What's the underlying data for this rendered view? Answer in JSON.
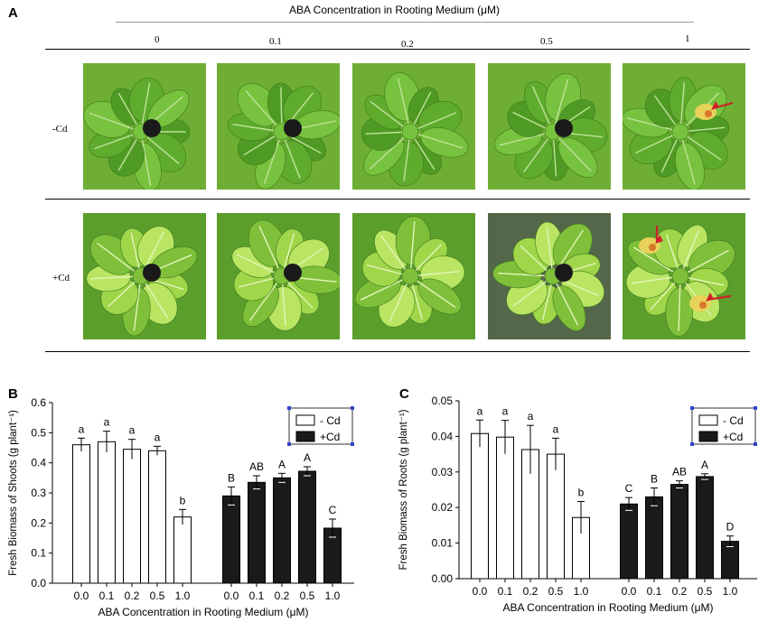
{
  "panel_a": {
    "letter": "A",
    "header": "ABA Concentration in Rooting Medium (μM)",
    "concentrations": [
      "0",
      "0.1",
      "0.2",
      "0.5",
      "1"
    ],
    "row_labels": [
      "-Cd",
      "+Cd"
    ]
  },
  "chart_data": [
    {
      "panel": "B",
      "type": "bar",
      "title": "",
      "xlabel": "ABA Concentration in Rooting Medium (μM)",
      "ylabel": "Fresh Biomass of Shoots (g plant⁻¹)",
      "ylim": [
        0.0,
        0.6
      ],
      "yticks": [
        "0.0",
        "0.1",
        "0.2",
        "0.3",
        "0.4",
        "0.5",
        "0.6"
      ],
      "categories": [
        "0.0",
        "0.1",
        "0.2",
        "0.5",
        "1.0"
      ],
      "legend_position": "top-right",
      "series": [
        {
          "name": "- Cd",
          "color": "#ffffff",
          "values": [
            0.46,
            0.47,
            0.445,
            0.44,
            0.22
          ],
          "errors": [
            0.022,
            0.035,
            0.033,
            0.015,
            0.025
          ],
          "letters": [
            "a",
            "a",
            "a",
            "a",
            "b"
          ]
        },
        {
          "name": "+Cd",
          "color": "#1a1a1a",
          "values": [
            0.29,
            0.335,
            0.35,
            0.372,
            0.183
          ],
          "errors": [
            0.03,
            0.022,
            0.015,
            0.015,
            0.03
          ],
          "letters": [
            "B",
            "AB",
            "A",
            "A",
            "C"
          ]
        }
      ]
    },
    {
      "panel": "C",
      "type": "bar",
      "title": "",
      "xlabel": "ABA Concentration in Rooting Medium (μM)",
      "ylabel": "Fresh Biomass of Roots (g plant⁻¹)",
      "ylim": [
        0.0,
        0.05
      ],
      "yticks": [
        "0.00",
        "0.01",
        "0.02",
        "0.03",
        "0.04",
        "0.05"
      ],
      "categories": [
        "0.0",
        "0.1",
        "0.2",
        "0.5",
        "1.0"
      ],
      "legend_position": "top-right",
      "series": [
        {
          "name": "- Cd",
          "color": "#ffffff",
          "values": [
            0.0408,
            0.0398,
            0.0363,
            0.035,
            0.0172
          ],
          "errors": [
            0.0038,
            0.0047,
            0.0068,
            0.0045,
            0.0045
          ],
          "letters": [
            "a",
            "a",
            "a",
            "a",
            "b"
          ]
        },
        {
          "name": "+Cd",
          "color": "#1a1a1a",
          "values": [
            0.021,
            0.023,
            0.0265,
            0.0287,
            0.0105
          ],
          "errors": [
            0.0018,
            0.0025,
            0.001,
            0.0008,
            0.0015
          ],
          "letters": [
            "C",
            "B",
            "AB",
            "A",
            "D"
          ]
        }
      ]
    }
  ]
}
